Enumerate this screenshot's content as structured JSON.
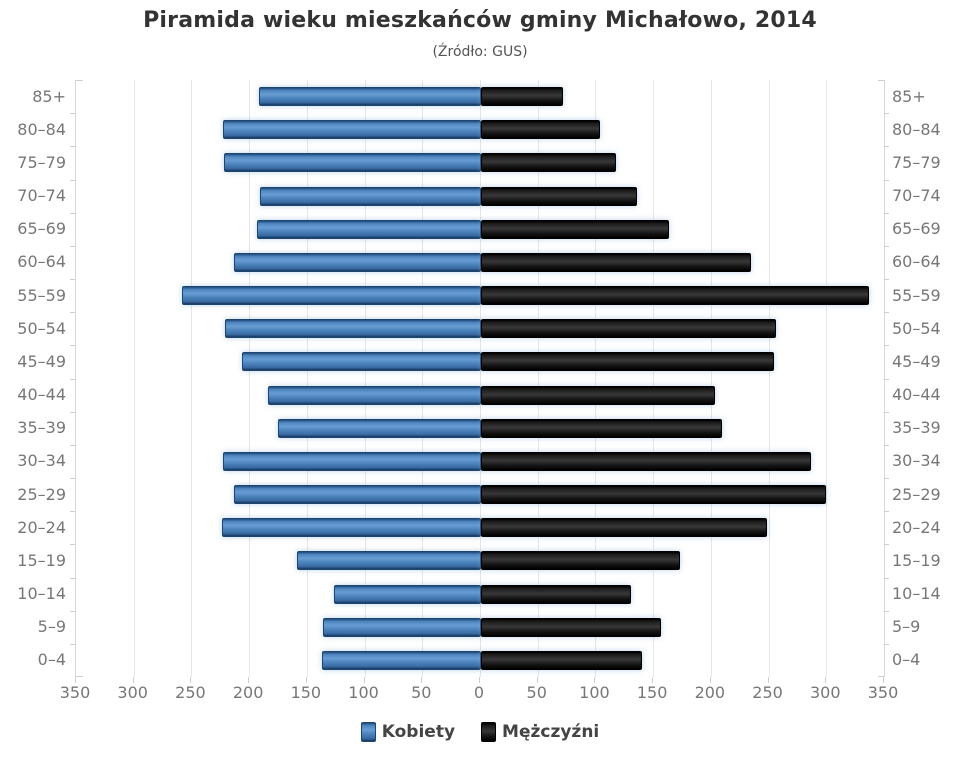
{
  "chart_data": {
    "type": "bar",
    "variant": "population-pyramid",
    "title": "Piramida wieku mieszkańców gminy Michałowo, 2014",
    "subtitle": "(Źródło: GUS)",
    "categories": [
      "85+",
      "80–84",
      "75–79",
      "70–74",
      "65–69",
      "60–64",
      "55–59",
      "50–54",
      "45–49",
      "40–44",
      "35–39",
      "30–34",
      "25–29",
      "20–24",
      "15–19",
      "10–14",
      "5–9",
      "0–4"
    ],
    "series": [
      {
        "name": "Kobiety",
        "side": "left",
        "values": [
          191,
          222,
          221,
          190,
          192,
          212,
          257,
          220,
          205,
          183,
          174,
          222,
          212,
          223,
          158,
          126,
          135,
          136
        ]
      },
      {
        "name": "Mężczyźni",
        "side": "right",
        "values": [
          69,
          101,
          115,
          133,
          161,
          232,
          334,
          254,
          252,
          201,
          207,
          284,
          297,
          246,
          171,
          128,
          154,
          138
        ]
      }
    ],
    "xlim": [
      0,
      350
    ],
    "tick_interval": 50,
    "x_ticks": [
      350,
      300,
      250,
      200,
      150,
      100,
      50,
      0,
      50,
      100,
      150,
      200,
      250,
      300,
      350
    ],
    "grid": true,
    "legend_position": "bottom",
    "colors": {
      "women_bar": "#4d84bd",
      "men_bar": "#141414",
      "gridline": "#e6e6e6",
      "axis_line": "#d8d8d8",
      "tick_label": "#777777",
      "title_text": "#333333",
      "legend_text": "#444444",
      "background": "#ffffff"
    }
  }
}
